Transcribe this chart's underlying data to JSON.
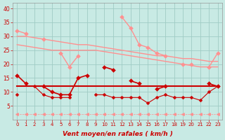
{
  "x": [
    0,
    1,
    2,
    3,
    4,
    5,
    6,
    7,
    8,
    9,
    10,
    11,
    12,
    13,
    14,
    15,
    16,
    17,
    18,
    19,
    20,
    21,
    22,
    23
  ],
  "upper_light": [
    32,
    31,
    null,
    29,
    null,
    24,
    19,
    23,
    null,
    null,
    null,
    null,
    37,
    33,
    27,
    26,
    24,
    23,
    null,
    20,
    20,
    null,
    19,
    24
  ],
  "trend_upper": [
    30,
    30,
    29.5,
    29,
    28.5,
    28,
    27.5,
    27,
    27,
    26.5,
    26,
    25.5,
    25,
    24.5,
    24,
    23.5,
    23,
    23,
    22.5,
    22,
    22,
    21.5,
    21,
    21
  ],
  "trend_lower": [
    27,
    26.5,
    26,
    25.5,
    25,
    25,
    25,
    25,
    25,
    25,
    24.5,
    24,
    23.5,
    23,
    22.5,
    22,
    21.5,
    21,
    20.5,
    20,
    19.5,
    19,
    19,
    19
  ],
  "dark_flat": [
    12,
    12,
    12,
    12,
    12,
    12,
    12,
    12,
    12,
    12,
    12,
    12,
    12,
    12,
    12,
    12,
    12,
    12,
    12,
    12,
    12,
    12,
    12,
    12
  ],
  "mid_dark": [
    16,
    13,
    null,
    12,
    10,
    9,
    9,
    15,
    16,
    null,
    19,
    18,
    null,
    14,
    13,
    null,
    null,
    null,
    null,
    null,
    null,
    null,
    null,
    null
  ],
  "mid_dark2": [
    null,
    null,
    null,
    null,
    null,
    null,
    null,
    null,
    null,
    null,
    null,
    null,
    null,
    null,
    null,
    null,
    11,
    12,
    null,
    null,
    null,
    null,
    13,
    12
  ],
  "lower_dark": [
    9,
    null,
    12,
    9,
    8,
    8,
    8,
    null,
    null,
    9,
    9,
    8,
    8,
    8,
    8,
    6,
    8,
    9,
    8,
    8,
    8,
    7,
    10,
    12
  ],
  "bottom_arrows": [
    2,
    2,
    2,
    2,
    2,
    2,
    2,
    2,
    2,
    2,
    2,
    2,
    2,
    2,
    2,
    2,
    2,
    2,
    2,
    2,
    2,
    2,
    2,
    2
  ],
  "bg_color": "#c8eae4",
  "grid_color": "#a0ccc4",
  "color_dark_red": "#cc0000",
  "color_light_red": "#ff9090",
  "color_medium_red": "#ee3333",
  "xlabel": "Vent moyen/en rafales ( km/h )",
  "ylim": [
    0,
    42
  ],
  "xlim": [
    -0.5,
    23.5
  ],
  "ylabel_ticks": [
    5,
    10,
    15,
    20,
    25,
    30,
    35,
    40
  ]
}
